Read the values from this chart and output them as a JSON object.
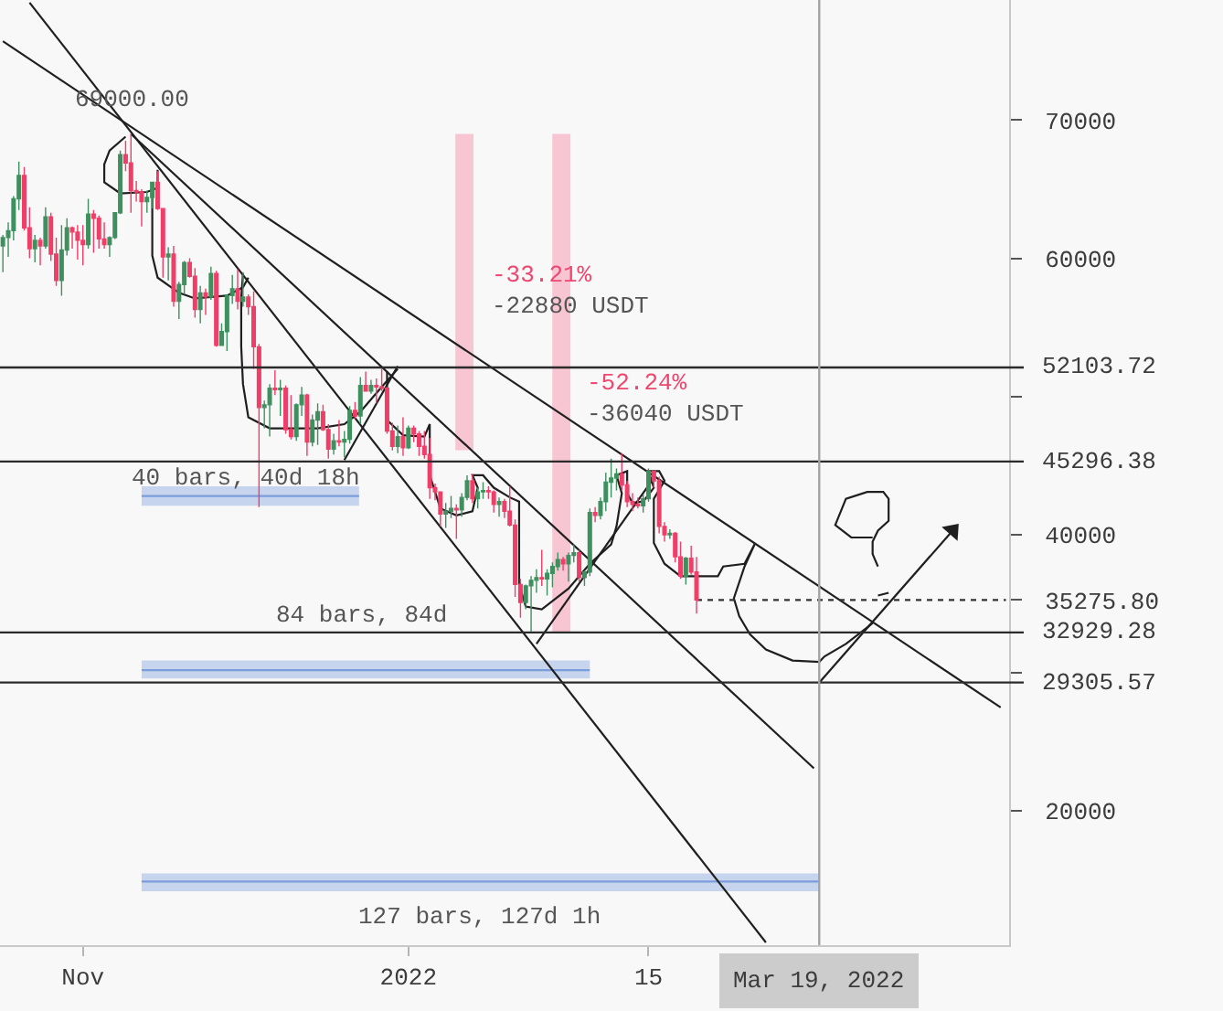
{
  "chart_data": {
    "type": "candlestick",
    "x": [
      "2021-10-17",
      "2021-10-18",
      "2021-10-19",
      "2021-10-20",
      "2021-10-21",
      "2021-10-22",
      "2021-10-23",
      "2021-10-24",
      "2021-10-25",
      "2021-10-26",
      "2021-10-27",
      "2021-10-28",
      "2021-10-29",
      "2021-10-30",
      "2021-10-31",
      "2021-11-01",
      "2021-11-02",
      "2021-11-03",
      "2021-11-04",
      "2021-11-05",
      "2021-11-06",
      "2021-11-07",
      "2021-11-08",
      "2021-11-09",
      "2021-11-10",
      "2021-11-11",
      "2021-11-12",
      "2021-11-13",
      "2021-11-14",
      "2021-11-15",
      "2021-11-16",
      "2021-11-17",
      "2021-11-18",
      "2021-11-19",
      "2021-11-20",
      "2021-11-21",
      "2021-11-22",
      "2021-11-23",
      "2021-11-24",
      "2021-11-25",
      "2021-11-26",
      "2021-11-27",
      "2021-11-28",
      "2021-11-29",
      "2021-11-30",
      "2021-12-01",
      "2021-12-02",
      "2021-12-03",
      "2021-12-04",
      "2021-12-05",
      "2021-12-06",
      "2021-12-07",
      "2021-12-08",
      "2021-12-09",
      "2021-12-10",
      "2021-12-11",
      "2021-12-12",
      "2021-12-13",
      "2021-12-14",
      "2021-12-15",
      "2021-12-16",
      "2021-12-17",
      "2021-12-18",
      "2021-12-19",
      "2021-12-20",
      "2021-12-21",
      "2021-12-22",
      "2021-12-23",
      "2021-12-24",
      "2021-12-25",
      "2021-12-26",
      "2021-12-27",
      "2021-12-28",
      "2021-12-29",
      "2021-12-30",
      "2021-12-31",
      "2022-01-01",
      "2022-01-02",
      "2022-01-03",
      "2022-01-04",
      "2022-01-05",
      "2022-01-06",
      "2022-01-07",
      "2022-01-08",
      "2022-01-09",
      "2022-01-10",
      "2022-01-11",
      "2022-01-12",
      "2022-01-13",
      "2022-01-14",
      "2022-01-15",
      "2022-01-16",
      "2022-01-17",
      "2022-01-18",
      "2022-01-19",
      "2022-01-20",
      "2022-01-21",
      "2022-01-22",
      "2022-01-23",
      "2022-01-24",
      "2022-01-25",
      "2022-01-26",
      "2022-01-27",
      "2022-01-28",
      "2022-01-29",
      "2022-01-30",
      "2022-01-31",
      "2022-02-01",
      "2022-02-02",
      "2022-02-03",
      "2022-02-04",
      "2022-02-05",
      "2022-02-06",
      "2022-02-07",
      "2022-02-08",
      "2022-02-09",
      "2022-02-10",
      "2022-02-11",
      "2022-02-12",
      "2022-02-13",
      "2022-02-14",
      "2022-02-15",
      "2022-02-16",
      "2022-02-17",
      "2022-02-18",
      "2022-02-19",
      "2022-02-20",
      "2022-02-21",
      "2022-02-22",
      "2022-02-23",
      "2022-02-24"
    ],
    "ohlc": [
      [
        60900,
        61700,
        59000,
        61500
      ],
      [
        61500,
        62600,
        60100,
        62000
      ],
      [
        62000,
        64500,
        61300,
        64300
      ],
      [
        64300,
        67000,
        63500,
        66000
      ],
      [
        66000,
        66600,
        62000,
        62200
      ],
      [
        62200,
        63700,
        60000,
        60700
      ],
      [
        60700,
        61700,
        59700,
        61300
      ],
      [
        61300,
        61500,
        59500,
        60900
      ],
      [
        60900,
        63700,
        60700,
        63000
      ],
      [
        63000,
        63300,
        59800,
        60300
      ],
      [
        60300,
        61500,
        58000,
        58400
      ],
      [
        58400,
        62400,
        57300,
        60600
      ],
      [
        60600,
        62900,
        60200,
        62200
      ],
      [
        62200,
        62300,
        60700,
        61900
      ],
      [
        61900,
        62400,
        59900,
        61300
      ],
      [
        61300,
        62400,
        59500,
        61000
      ],
      [
        61000,
        64300,
        60700,
        63200
      ],
      [
        63200,
        63500,
        60400,
        62900
      ],
      [
        62900,
        63100,
        60700,
        61400
      ],
      [
        61400,
        62600,
        60700,
        61000
      ],
      [
        61000,
        61600,
        60100,
        61500
      ],
      [
        61500,
        63300,
        61400,
        63300
      ],
      [
        63300,
        67800,
        63200,
        67500
      ],
      [
        67500,
        68500,
        66300,
        66900
      ],
      [
        66900,
        69000,
        63300,
        64900
      ],
      [
        64900,
        65600,
        64100,
        64800
      ],
      [
        64800,
        65000,
        62300,
        64100
      ],
      [
        64100,
        64900,
        63300,
        64400
      ],
      [
        64400,
        65500,
        63600,
        65500
      ],
      [
        65500,
        66300,
        63500,
        63600
      ],
      [
        63600,
        63600,
        58600,
        60100
      ],
      [
        60100,
        60800,
        58400,
        60300
      ],
      [
        60300,
        60900,
        56500,
        56900
      ],
      [
        56900,
        58300,
        55600,
        58100
      ],
      [
        58100,
        59800,
        57400,
        59700
      ],
      [
        59700,
        60000,
        58600,
        58700
      ],
      [
        58700,
        59300,
        55700,
        56300
      ],
      [
        56300,
        58000,
        55300,
        57500
      ],
      [
        57500,
        57800,
        55900,
        57200
      ],
      [
        57200,
        59400,
        57000,
        58900
      ],
      [
        58900,
        59100,
        53600,
        53700
      ],
      [
        53700,
        55300,
        53700,
        54700
      ],
      [
        54700,
        57400,
        53300,
        57300
      ],
      [
        57300,
        58800,
        56700,
        57800
      ],
      [
        57800,
        59200,
        56300,
        56900
      ],
      [
        56900,
        59000,
        56500,
        57200
      ],
      [
        57200,
        57400,
        55900,
        56500
      ],
      [
        56500,
        57600,
        52000,
        53600
      ],
      [
        53600,
        53800,
        42000,
        49200
      ],
      [
        49200,
        49700,
        47700,
        49400
      ],
      [
        49400,
        50900,
        47100,
        50600
      ],
      [
        50600,
        51900,
        50100,
        50500
      ],
      [
        50500,
        51200,
        48600,
        50600
      ],
      [
        50600,
        50800,
        47300,
        47600
      ],
      [
        47600,
        50100,
        46900,
        47100
      ],
      [
        47100,
        49500,
        46800,
        49400
      ],
      [
        49400,
        50700,
        48600,
        50100
      ],
      [
        50100,
        50200,
        45700,
        46700
      ],
      [
        46700,
        48700,
        46400,
        48300
      ],
      [
        48300,
        49500,
        46500,
        48900
      ],
      [
        48900,
        49400,
        47500,
        47600
      ],
      [
        47600,
        48000,
        45500,
        46200
      ],
      [
        46200,
        47300,
        45800,
        46800
      ],
      [
        46800,
        48300,
        46400,
        46700
      ],
      [
        46700,
        47500,
        45600,
        46900
      ],
      [
        46900,
        49300,
        46600,
        49000
      ],
      [
        49000,
        49600,
        48400,
        48600
      ],
      [
        48600,
        51400,
        48000,
        50800
      ],
      [
        50800,
        51800,
        50400,
        50400
      ],
      [
        50400,
        51200,
        50200,
        50800
      ],
      [
        50800,
        51300,
        49500,
        50700
      ],
      [
        50700,
        52000,
        50400,
        50600
      ],
      [
        50600,
        50700,
        47300,
        47500
      ],
      [
        47500,
        48100,
        46100,
        46400
      ],
      [
        46400,
        47900,
        45900,
        47100
      ],
      [
        47100,
        48500,
        45700,
        46300
      ],
      [
        46300,
        47900,
        46200,
        47700
      ],
      [
        47700,
        47900,
        46700,
        47300
      ],
      [
        47300,
        47500,
        45700,
        46400
      ],
      [
        46400,
        47500,
        45500,
        45800
      ],
      [
        45800,
        47000,
        42600,
        43400
      ],
      [
        43400,
        43700,
        42500,
        43100
      ],
      [
        43100,
        43100,
        40600,
        41500
      ],
      [
        41500,
        42300,
        40500,
        41700
      ],
      [
        41700,
        42800,
        41200,
        41900
      ],
      [
        41900,
        42200,
        39700,
        41800
      ],
      [
        41800,
        43000,
        41300,
        42700
      ],
      [
        42700,
        44300,
        42500,
        43900
      ],
      [
        43900,
        44400,
        42300,
        42600
      ],
      [
        42600,
        43400,
        41900,
        43100
      ],
      [
        43100,
        43800,
        42600,
        43200
      ],
      [
        43200,
        43500,
        42600,
        43100
      ],
      [
        43100,
        43200,
        41600,
        42200
      ],
      [
        42200,
        42700,
        41300,
        42400
      ],
      [
        42400,
        42600,
        41200,
        41700
      ],
      [
        41700,
        43500,
        40600,
        40700
      ],
      [
        40700,
        41100,
        35500,
        36400
      ],
      [
        36400,
        36800,
        34000,
        35100
      ],
      [
        35100,
        36400,
        34600,
        36300
      ],
      [
        36300,
        37000,
        33000,
        36700
      ],
      [
        36700,
        37500,
        35800,
        36900
      ],
      [
        36900,
        38900,
        36300,
        36800
      ],
      [
        36800,
        37500,
        35600,
        37200
      ],
      [
        37200,
        38000,
        36200,
        37700
      ],
      [
        37700,
        38700,
        37400,
        38200
      ],
      [
        38200,
        38400,
        37400,
        37900
      ],
      [
        37900,
        38700,
        36600,
        38500
      ],
      [
        38500,
        39300,
        38000,
        38700
      ],
      [
        38700,
        38900,
        36600,
        36900
      ],
      [
        36900,
        37400,
        36300,
        37300
      ],
      [
        37300,
        41900,
        37000,
        41600
      ],
      [
        41600,
        42000,
        40900,
        41400
      ],
      [
        41400,
        42700,
        41100,
        42400
      ],
      [
        42400,
        44500,
        41700,
        43800
      ],
      [
        43800,
        45500,
        42700,
        44100
      ],
      [
        44100,
        44800,
        43200,
        44400
      ],
      [
        44400,
        45900,
        43200,
        43600
      ],
      [
        43600,
        43900,
        42000,
        42400
      ],
      [
        42400,
        43000,
        41700,
        42200
      ],
      [
        42200,
        42700,
        41900,
        42100
      ],
      [
        42100,
        42900,
        41600,
        42600
      ],
      [
        42600,
        44800,
        42400,
        44600
      ],
      [
        44600,
        44600,
        43400,
        43900
      ],
      [
        43900,
        44200,
        40100,
        40600
      ],
      [
        40600,
        40900,
        39500,
        40000
      ],
      [
        40000,
        40400,
        39700,
        40100
      ],
      [
        40100,
        40200,
        38000,
        38400
      ],
      [
        38400,
        39500,
        36800,
        37000
      ],
      [
        37000,
        38400,
        36400,
        38300
      ],
      [
        38300,
        39200,
        37100,
        37300
      ],
      [
        37300,
        38400,
        34300,
        35275.8
      ]
    ],
    "colors": [
      "#3f8f5f",
      "#3f8f5f",
      "#3f8f5f",
      "#3f8f5f",
      "#ef3e68",
      "#ef3e68",
      "#3f8f5f",
      "#ef3e68",
      "#3f8f5f",
      "#ef3e68",
      "#ef3e68",
      "#3f8f5f",
      "#3f8f5f",
      "#ef3e68",
      "#ef3e68",
      "#ef3e68",
      "#3f8f5f",
      "#ef3e68",
      "#ef3e68",
      "#ef3e68",
      "#3f8f5f",
      "#3f8f5f",
      "#3f8f5f",
      "#ef3e68",
      "#ef3e68",
      "#ef3e68",
      "#ef3e68",
      "#3f8f5f",
      "#3f8f5f",
      "#ef3e68",
      "#ef3e68",
      "#3f8f5f",
      "#ef3e68",
      "#3f8f5f",
      "#3f8f5f",
      "#ef3e68",
      "#ef3e68",
      "#3f8f5f",
      "#ef3e68",
      "#3f8f5f",
      "#ef3e68",
      "#3f8f5f",
      "#3f8f5f",
      "#3f8f5f",
      "#ef3e68",
      "#3f8f5f",
      "#ef3e68",
      "#ef3e68",
      "#ef3e68",
      "#3f8f5f",
      "#3f8f5f",
      "#ef3e68",
      "#3f8f5f",
      "#ef3e68",
      "#ef3e68",
      "#3f8f5f",
      "#3f8f5f",
      "#ef3e68",
      "#3f8f5f",
      "#3f8f5f",
      "#ef3e68",
      "#ef3e68",
      "#3f8f5f",
      "#ef3e68",
      "#3f8f5f",
      "#3f8f5f",
      "#ef3e68",
      "#3f8f5f",
      "#ef3e68",
      "#3f8f5f",
      "#ef3e68",
      "#ef3e68",
      "#ef3e68",
      "#ef3e68",
      "#3f8f5f",
      "#ef3e68",
      "#3f8f5f",
      "#ef3e68",
      "#ef3e68",
      "#ef3e68",
      "#ef3e68",
      "#ef3e68",
      "#ef3e68",
      "#3f8f5f",
      "#3f8f5f",
      "#ef3e68",
      "#3f8f5f",
      "#3f8f5f",
      "#ef3e68",
      "#3f8f5f",
      "#3f8f5f",
      "#ef3e68",
      "#ef3e68",
      "#3f8f5f",
      "#ef3e68",
      "#ef3e68",
      "#ef3e68",
      "#ef3e68",
      "#3f8f5f",
      "#3f8f5f",
      "#3f8f5f",
      "#ef3e68",
      "#3f8f5f",
      "#3f8f5f",
      "#3f8f5f",
      "#ef3e68",
      "#3f8f5f",
      "#3f8f5f",
      "#ef3e68",
      "#3f8f5f",
      "#3f8f5f",
      "#ef3e68",
      "#3f8f5f",
      "#3f8f5f",
      "#3f8f5f",
      "#3f8f5f",
      "#ef3e68",
      "#ef3e68",
      "#ef3e68",
      "#ef3e68",
      "#3f8f5f",
      "#3f8f5f",
      "#ef3e68",
      "#ef3e68",
      "#ef3e68",
      "#3f8f5f",
      "#ef3e68",
      "#ef3e68",
      "#3f8f5f",
      "#ef3e68",
      "#ef3e68"
    ],
    "series": [
      {
        "type": "bar",
        "x": [
          "2022-01-11T12:00",
          "2022-01-29T16:00"
        ],
        "values": [
          -22880,
          -36040
        ],
        "base": [
          69000,
          69000
        ],
        "color": "#f7c6d2"
      },
      {
        "type": "line",
        "x": [
          "2021-11-12",
          "2021-12-22T18:00"
        ],
        "values": [
          42800,
          42800
        ],
        "lower": [
          42100,
          42100
        ],
        "upper": [
          43500,
          43500
        ],
        "color": "#7c9ddc"
      },
      {
        "type": "line",
        "x": [
          "2021-11-12",
          "2022-02-04"
        ],
        "values": [
          30200,
          30200
        ],
        "lower": [
          29600,
          29600
        ],
        "upper": [
          30900,
          30900
        ],
        "color": "#7c9ddc"
      },
      {
        "type": "line",
        "x": [
          "2021-11-12",
          "2022-03-19T01:00"
        ],
        "values": [
          14900,
          14900
        ],
        "lower": [
          14200,
          14200
        ],
        "upper": [
          15500,
          15500
        ],
        "color": "#7c9ddc"
      },
      {
        "type": "line",
        "x": [
          "2021-10-17",
          "2022-04-22"
        ],
        "values": [
          75700,
          27500
        ],
        "color": "#1f1f1f"
      },
      {
        "type": "line",
        "x": [
          "2021-10-22",
          "2022-03-09"
        ],
        "values": [
          78500,
          10500
        ],
        "color": "#1f1f1f"
      },
      {
        "type": "line",
        "x": [
          "2021-11-10",
          "2022-03-18"
        ],
        "values": [
          69000,
          23100
        ],
        "color": "#1f1f1f"
      },
      {
        "type": "line",
        "x": [
          "2021-12-20",
          "2021-12-30"
        ],
        "values": [
          45400,
          52200
        ],
        "color": "#1f1f1f"
      },
      {
        "type": "line",
        "x": [
          "2022-01-25",
          "2022-02-16"
        ],
        "values": [
          32100,
          44100
        ],
        "color": "#1f1f1f"
      },
      {
        "type": "line",
        "x": [
          "2021-11-09",
          "2021-11-06",
          "2021-11-05",
          "2021-11-05",
          "2021-11-08",
          "2021-11-13",
          "2021-11-15",
          "2021-11-15"
        ],
        "values": [
          68800,
          67800,
          66800,
          65500,
          64700,
          64800,
          65100,
          66400
        ],
        "color": "#1f1f1f"
      },
      {
        "type": "line",
        "x": [
          "2021-11-14",
          "2021-11-14",
          "2021-11-14",
          "2021-11-15",
          "2021-11-19",
          "2021-11-22",
          "2021-11-28",
          "2021-12-01",
          "2021-12-02"
        ],
        "values": [
          65200,
          62800,
          60200,
          58600,
          57500,
          57100,
          57300,
          57900,
          58600
        ],
        "color": "#1f1f1f"
      },
      {
        "type": "line",
        "x": [
          "2021-12-01",
          "2021-11-30T16:00",
          "2021-11-30T16:00",
          "2021-12-01",
          "2021-12-02",
          "2021-12-06",
          "2021-12-15",
          "2021-12-20",
          "2021-12-23",
          "2021-12-27",
          "2021-12-30"
        ],
        "values": [
          58900,
          57100,
          53600,
          50900,
          48500,
          47700,
          47700,
          48000,
          48900,
          50700,
          52000
        ],
        "color": "#1f1f1f"
      },
      {
        "type": "line",
        "x": [
          "2021-12-28",
          "2021-12-28",
          "2021-12-31",
          "2022-01-04",
          "2022-01-05",
          "2022-01-05",
          "2022-01-07",
          "2022-01-10",
          "2022-01-13",
          "2022-01-14",
          "2022-01-13",
          "2022-01-15",
          "2022-01-17",
          "2022-01-20",
          "2022-01-21T18:00",
          "2022-01-21T18:00",
          "2022-01-21T18:00",
          "2022-01-23",
          "2022-01-26",
          "2022-01-31",
          "2022-02-04",
          "2022-02-08",
          "2022-02-09",
          "2022-02-10",
          "2022-02-09",
          "2022-02-11",
          "2022-02-11",
          "2022-02-12",
          "2022-02-14",
          "2022-02-16",
          "2022-02-15",
          "2022-02-17",
          "2022-02-18",
          "2022-02-16",
          "2022-02-16",
          "2022-02-18",
          "2022-02-21",
          "2022-02-28",
          "2022-03-01",
          "2022-03-05",
          "2022-03-07",
          "2022-03-05",
          "2022-03-03",
          "2022-03-04",
          "2022-03-06",
          "2022-03-09",
          "2022-03-14",
          "2022-03-19",
          "2022-03-20",
          "2022-03-24",
          "2022-03-28",
          "2022-03-29"
        ],
        "values": [
          51800,
          48300,
          47200,
          47100,
          48000,
          44300,
          41900,
          41400,
          41700,
          43400,
          44300,
          44300,
          43400,
          42700,
          42400,
          39900,
          36400,
          34800,
          34600,
          36100,
          37900,
          39300,
          40600,
          43000,
          44300,
          44600,
          43000,
          42300,
          42400,
          43400,
          44600,
          44600,
          43900,
          42600,
          39400,
          37900,
          37000,
          37000,
          37700,
          37900,
          39400,
          37700,
          35400,
          34100,
          32800,
          31700,
          30900,
          30800,
          31200,
          32100,
          33300,
          33600
        ],
        "color": "#1f1f1f"
      },
      {
        "type": "line",
        "x": [
          "2022-03-30",
          "2022-03-29",
          "2022-03-29",
          "2022-03-30",
          "2022-04-01",
          "2022-04-01",
          "2022-03-31",
          "2022-03-28",
          "2022-03-24",
          "2022-03-22",
          "2022-03-25",
          "2022-03-29"
        ],
        "values": [
          37700,
          38600,
          39500,
          40300,
          41000,
          42600,
          43100,
          43100,
          42600,
          40700,
          39800,
          39800
        ],
        "color": "#1f1f1f"
      },
      {
        "type": "line",
        "x": [
          "2022-03-30",
          "2022-04-01"
        ],
        "values": [
          35600,
          35800
        ],
        "color": "#1f1f1f"
      },
      {
        "type": "line",
        "x": [
          "2022-03-19",
          "2022-04-13"
        ],
        "values": [
          29300,
          40300
        ],
        "color": "#1f1f1f",
        "marker": "triangle"
      },
      {
        "type": "line",
        "x": [
          "2022-02-24",
          "2022-04-23"
        ],
        "values": [
          35275.8,
          35275.8
        ],
        "color": "#333333",
        "line_style": "dotted"
      }
    ],
    "ref_lines": [
      {
        "axis": "y",
        "value": 52103.72,
        "label": "52103.72",
        "color": "#2b2b2b"
      },
      {
        "axis": "y",
        "value": 45296.38,
        "label": "45296.38",
        "color": "#2b2b2b"
      },
      {
        "axis": "y",
        "value": 32929.28,
        "label": "32929.28",
        "color": "#2b2b2b"
      },
      {
        "axis": "y",
        "value": 29305.57,
        "label": "29305.57",
        "color": "#2b2b2b"
      },
      {
        "axis": "x",
        "value": "2022-03-19",
        "label": "Mar 19, 2022",
        "color": "#a3a3a3"
      }
    ],
    "annotations": [
      {
        "text": "69000.00",
        "x": "2021-11-10",
        "y": 69000
      },
      "-33.21%",
      "-22880 USDT",
      "-52.24%",
      "-36040 USDT",
      "40 bars, 40d 18h",
      "84 bars, 84d",
      "127 bars, 127d 1h"
    ],
    "xlim": [
      "2021-10-16T11:00",
      "2022-04-23T14:00"
    ],
    "ylim": [
      10300,
      78690
    ],
    "xticks": [
      {
        "value": "2021-11-01",
        "label": "Nov"
      },
      {
        "value": "2022-01-01",
        "label": "2022"
      },
      {
        "value": "2022-02-15",
        "label": "15"
      }
    ],
    "yticks": [
      20000,
      {
        "value": 30000,
        "label": null
      },
      {
        "value": 35275.8,
        "label": "35275.80"
      },
      40000,
      {
        "value": 50000,
        "label": null
      },
      60000,
      70000
    ],
    "grid": false
  }
}
